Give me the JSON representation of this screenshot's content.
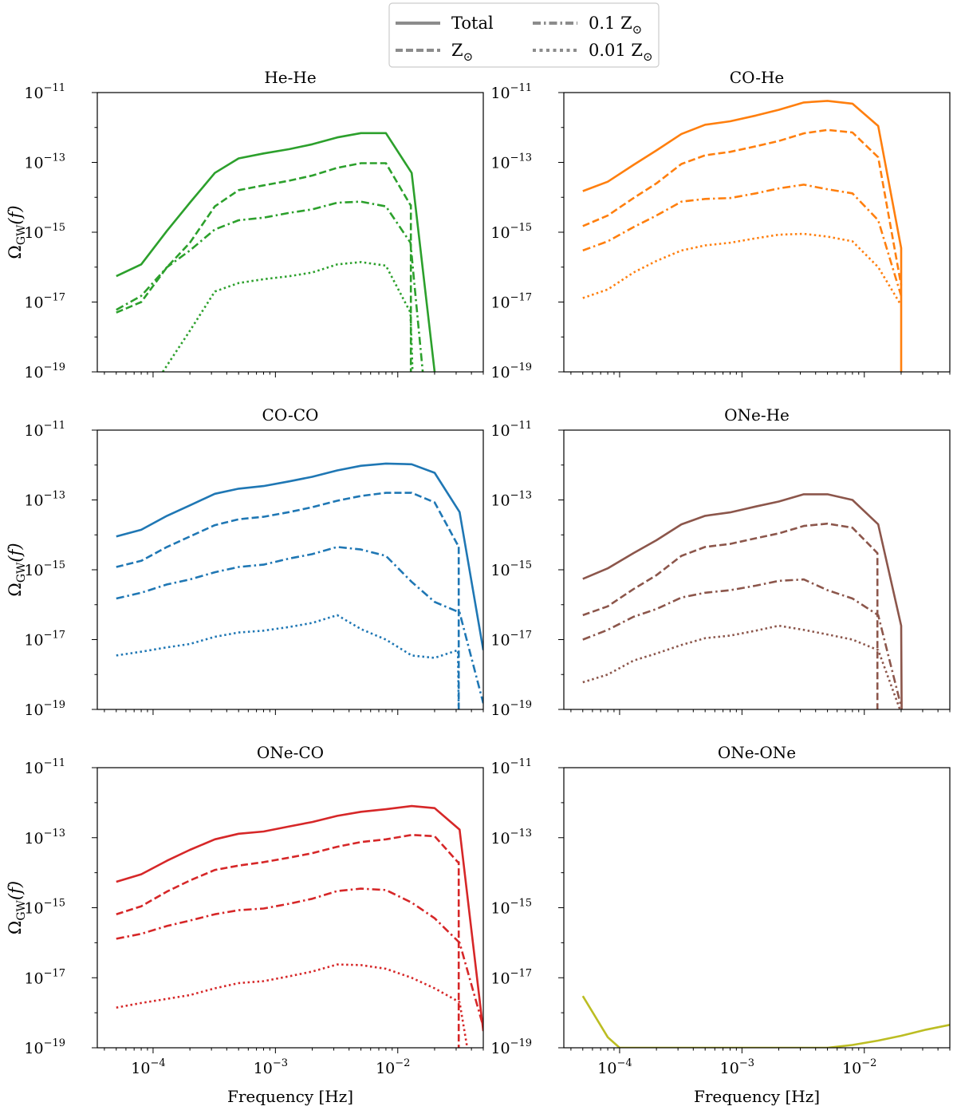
{
  "legend": {
    "position": "top-center",
    "entries": [
      {
        "label": "Total",
        "style": "solid"
      },
      {
        "label": "Z",
        "sub": "⊙",
        "style": "dashed"
      },
      {
        "label": "0.1 Z",
        "sub": "⊙",
        "style": "dashdot"
      },
      {
        "label": "0.01 Z",
        "sub": "⊙",
        "style": "dotted"
      }
    ],
    "color": "#8c8c8c"
  },
  "chart_data": [
    {
      "type": "line",
      "title": "He-He",
      "color": "#2ca02c",
      "xlabel": "",
      "ylabel": "Ω_GW(f)",
      "xscale": "log",
      "yscale": "log",
      "xlim": [
        3.5e-05,
        0.05
      ],
      "ylim": [
        1e-19,
        1e-11
      ],
      "yticks": [
        "10^-11",
        "10^-13",
        "10^-15",
        "10^-17",
        "10^-19"
      ],
      "series": [
        {
          "name": "Total",
          "style": "solid",
          "x": [
            5e-05,
            8e-05,
            0.00013,
            0.0002,
            0.00032,
            0.0005,
            0.0008,
            0.0013,
            0.002,
            0.0032,
            0.005,
            0.008,
            0.013,
            0.02
          ],
          "y": [
            5.5e-17,
            1.2e-16,
            1.1e-15,
            7e-15,
            5e-14,
            1.3e-13,
            1.8e-13,
            2.4e-13,
            3.3e-13,
            5.2e-13,
            6.9e-13,
            6.9e-13,
            5e-14,
            1e-19
          ]
        },
        {
          "name": "Z⊙",
          "style": "dashed",
          "x": [
            5e-05,
            8e-05,
            0.00013,
            0.0002,
            0.00032,
            0.0005,
            0.0008,
            0.0013,
            0.002,
            0.0032,
            0.005,
            0.008,
            0.0127,
            0.0128,
            0.0128
          ],
          "y": [
            5e-18,
            1e-17,
            1e-16,
            5e-16,
            5.5e-15,
            1.6e-14,
            2.2e-14,
            3e-14,
            4.2e-14,
            7e-14,
            9.5e-14,
            9.5e-14,
            6e-15,
            6e-15,
            1e-19
          ]
        },
        {
          "name": "0.1 Z⊙",
          "style": "dashdot",
          "x": [
            5e-05,
            8e-05,
            0.00013,
            0.0002,
            0.00032,
            0.0005,
            0.0008,
            0.0013,
            0.002,
            0.0032,
            0.005,
            0.008,
            0.0127,
            0.016
          ],
          "y": [
            6e-18,
            1.5e-17,
            1e-16,
            3e-16,
            1.2e-15,
            2.2e-15,
            2.6e-15,
            3.6e-15,
            4.5e-15,
            7e-15,
            7.5e-15,
            5.5e-15,
            5e-16,
            1e-19
          ]
        },
        {
          "name": "0.01 Z⊙",
          "style": "dotted",
          "x": [
            0.00012,
            0.0002,
            0.00032,
            0.0005,
            0.0008,
            0.0013,
            0.002,
            0.0032,
            0.005,
            0.008,
            0.0127,
            0.0132
          ],
          "y": [
            1e-19,
            1.5e-18,
            2e-17,
            3.5e-17,
            4.5e-17,
            5.5e-17,
            7e-17,
            1.2e-16,
            1.4e-16,
            1.1e-16,
            5e-18,
            1e-19
          ]
        }
      ]
    },
    {
      "type": "line",
      "title": "CO-He",
      "color": "#ff7f0e",
      "xlabel": "",
      "ylabel": "",
      "xscale": "log",
      "yscale": "log",
      "xlim": [
        3.5e-05,
        0.05
      ],
      "ylim": [
        1e-19,
        1e-11
      ],
      "yticks": [
        "10^-11",
        "10^-13",
        "10^-15",
        "10^-17",
        "10^-19"
      ],
      "series": [
        {
          "name": "Total",
          "style": "solid",
          "x": [
            5e-05,
            8e-05,
            0.00013,
            0.0002,
            0.00032,
            0.0005,
            0.0008,
            0.0013,
            0.002,
            0.0032,
            0.005,
            0.008,
            0.013,
            0.02,
            0.02
          ],
          "y": [
            1.5e-14,
            2.8e-14,
            8.5e-14,
            2.2e-13,
            6.5e-13,
            1.2e-12,
            1.5e-12,
            2.2e-12,
            3.2e-12,
            5.2e-12,
            5.8e-12,
            4.8e-12,
            1.1e-12,
            3.5e-16,
            1e-19
          ]
        },
        {
          "name": "Z⊙",
          "style": "dashed",
          "x": [
            5e-05,
            8e-05,
            0.00013,
            0.0002,
            0.00032,
            0.0005,
            0.0008,
            0.0013,
            0.002,
            0.0032,
            0.005,
            0.008,
            0.013,
            0.02
          ],
          "y": [
            1.5e-15,
            3e-15,
            9.5e-15,
            2.5e-14,
            9e-14,
            1.6e-13,
            2e-13,
            2.9e-13,
            4.1e-13,
            6.8e-13,
            8.5e-13,
            7.2e-13,
            1.4e-13,
            3e-17
          ]
        },
        {
          "name": "0.1 Z⊙",
          "style": "dashdot",
          "x": [
            5e-05,
            8e-05,
            0.00013,
            0.0002,
            0.00032,
            0.0005,
            0.0008,
            0.0013,
            0.002,
            0.0032,
            0.005,
            0.008,
            0.013,
            0.02
          ],
          "y": [
            3e-16,
            5.5e-16,
            1.4e-15,
            3e-15,
            7.5e-15,
            9e-15,
            9.5e-15,
            1.3e-14,
            1.8e-14,
            2.3e-14,
            1.7e-14,
            1.3e-14,
            2.2e-15,
            1.5e-17
          ]
        },
        {
          "name": "0.01 Z⊙",
          "style": "dotted",
          "x": [
            5e-05,
            8e-05,
            0.00013,
            0.0002,
            0.00032,
            0.0005,
            0.0008,
            0.0013,
            0.002,
            0.0032,
            0.005,
            0.008,
            0.013,
            0.02
          ],
          "y": [
            1.3e-17,
            2.3e-17,
            7e-17,
            1.5e-16,
            3e-16,
            4.2e-16,
            5e-16,
            6.7e-16,
            8.5e-16,
            9e-16,
            7.5e-16,
            5.5e-16,
            1e-16,
            8e-18
          ]
        }
      ]
    },
    {
      "type": "line",
      "title": "CO-CO",
      "color": "#1f77b4",
      "xlabel": "",
      "ylabel": "Ω_GW(f)",
      "xscale": "log",
      "yscale": "log",
      "xlim": [
        3.5e-05,
        0.05
      ],
      "ylim": [
        1e-19,
        1e-11
      ],
      "yticks": [
        "10^-11",
        "10^-13",
        "10^-15",
        "10^-17",
        "10^-19"
      ],
      "series": [
        {
          "name": "Total",
          "style": "solid",
          "x": [
            5e-05,
            8e-05,
            0.00013,
            0.0002,
            0.00032,
            0.0005,
            0.0008,
            0.0013,
            0.002,
            0.0032,
            0.005,
            0.008,
            0.013,
            0.02,
            0.032,
            0.05
          ],
          "y": [
            9e-15,
            1.4e-14,
            3.5e-14,
            7e-14,
            1.5e-13,
            2.1e-13,
            2.5e-13,
            3.4e-13,
            4.6e-13,
            7e-13,
            9.5e-13,
            1.1e-12,
            1.05e-12,
            6e-13,
            4.5e-14,
            5e-18
          ]
        },
        {
          "name": "Z⊙",
          "style": "dashed",
          "x": [
            5e-05,
            8e-05,
            0.00013,
            0.0002,
            0.00032,
            0.0005,
            0.0008,
            0.0013,
            0.002,
            0.0032,
            0.005,
            0.008,
            0.013,
            0.02,
            0.031,
            0.0315,
            0.0315
          ],
          "y": [
            1.2e-15,
            1.8e-15,
            4.5e-15,
            9e-15,
            1.9e-14,
            2.8e-14,
            3.3e-14,
            4.5e-14,
            6.2e-14,
            9.5e-14,
            1.3e-13,
            1.6e-13,
            1.6e-13,
            8.5e-14,
            5e-15,
            5e-15,
            1e-19
          ]
        },
        {
          "name": "0.1 Z⊙",
          "style": "dashdot",
          "x": [
            5e-05,
            8e-05,
            0.00013,
            0.0002,
            0.00032,
            0.0005,
            0.0008,
            0.0013,
            0.002,
            0.0032,
            0.005,
            0.008,
            0.013,
            0.02,
            0.032,
            0.05
          ],
          "y": [
            1.5e-16,
            2.2e-16,
            3.8e-16,
            5.3e-16,
            8.5e-16,
            1.2e-15,
            1.4e-15,
            2.1e-15,
            2.8e-15,
            4.5e-15,
            3.8e-15,
            2.5e-15,
            4.5e-16,
            1.2e-16,
            6e-17,
            1.5e-19
          ]
        },
        {
          "name": "0.01 Z⊙",
          "style": "dotted",
          "x": [
            5e-05,
            8e-05,
            0.00013,
            0.0002,
            0.00032,
            0.0005,
            0.0008,
            0.0013,
            0.002,
            0.0032,
            0.005,
            0.008,
            0.013,
            0.02,
            0.031,
            0.0315
          ],
          "y": [
            3.5e-18,
            4.5e-18,
            6e-18,
            7.5e-18,
            1.2e-17,
            1.6e-17,
            1.8e-17,
            2.3e-17,
            3e-17,
            5e-17,
            2e-17,
            1e-17,
            3.5e-18,
            3e-18,
            5e-18,
            1e-19
          ]
        }
      ]
    },
    {
      "type": "line",
      "title": "ONe-He",
      "color": "#8c564b",
      "xlabel": "",
      "ylabel": "",
      "xscale": "log",
      "yscale": "log",
      "xlim": [
        3.5e-05,
        0.05
      ],
      "ylim": [
        1e-19,
        1e-11
      ],
      "yticks": [
        "10^-11",
        "10^-13",
        "10^-15",
        "10^-17",
        "10^-19"
      ],
      "series": [
        {
          "name": "Total",
          "style": "solid",
          "x": [
            5e-05,
            8e-05,
            0.00013,
            0.0002,
            0.00032,
            0.0005,
            0.0008,
            0.0013,
            0.002,
            0.0032,
            0.005,
            0.008,
            0.013,
            0.02,
            0.0202
          ],
          "y": [
            5.5e-16,
            1.1e-15,
            3e-15,
            7e-15,
            2e-14,
            3.5e-14,
            4.4e-14,
            6.5e-14,
            9e-14,
            1.45e-13,
            1.45e-13,
            1e-13,
            2e-14,
            2.5e-17,
            1e-19
          ]
        },
        {
          "name": "Z⊙",
          "style": "dashed",
          "x": [
            5e-05,
            8e-05,
            0.00013,
            0.0002,
            0.00032,
            0.0005,
            0.0008,
            0.0013,
            0.002,
            0.0032,
            0.005,
            0.008,
            0.0128,
            0.0128
          ],
          "y": [
            5e-17,
            9e-17,
            2.8e-16,
            7e-16,
            2.5e-15,
            4.5e-15,
            5.5e-15,
            8e-15,
            1.1e-14,
            1.8e-14,
            2.1e-14,
            1.6e-14,
            3e-15,
            1e-19
          ]
        },
        {
          "name": "0.1 Z⊙",
          "style": "dashdot",
          "x": [
            5e-05,
            8e-05,
            0.00013,
            0.0002,
            0.00032,
            0.0005,
            0.0008,
            0.0013,
            0.002,
            0.0032,
            0.005,
            0.008,
            0.013,
            0.02
          ],
          "y": [
            1e-17,
            1.9e-17,
            4.5e-17,
            7.5e-17,
            1.6e-16,
            2.2e-16,
            2.6e-16,
            3.5e-16,
            4.8e-16,
            5.3e-16,
            2.6e-16,
            1.5e-16,
            5e-17,
            1.2e-19
          ]
        },
        {
          "name": "0.01 Z⊙",
          "style": "dotted",
          "x": [
            5e-05,
            8e-05,
            0.00013,
            0.0002,
            0.00032,
            0.0005,
            0.0008,
            0.0013,
            0.002,
            0.0032,
            0.005,
            0.008,
            0.013,
            0.02
          ],
          "y": [
            6e-19,
            1e-18,
            2.5e-18,
            4e-18,
            7e-18,
            1.1e-17,
            1.3e-17,
            1.8e-17,
            2.5e-17,
            1.9e-17,
            1.4e-17,
            1e-17,
            5e-18,
            8e-20
          ]
        }
      ]
    },
    {
      "type": "line",
      "title": "ONe-CO",
      "color": "#d62728",
      "xlabel": "Frequency [Hz]",
      "ylabel": "Ω_GW(f)",
      "xscale": "log",
      "yscale": "log",
      "xlim": [
        3.5e-05,
        0.05
      ],
      "ylim": [
        1e-19,
        1e-11
      ],
      "xticks": [
        "10^-4",
        "10^-3",
        "10^-2"
      ],
      "yticks": [
        "10^-11",
        "10^-13",
        "10^-15",
        "10^-17",
        "10^-19"
      ],
      "series": [
        {
          "name": "Total",
          "style": "solid",
          "x": [
            5e-05,
            8e-05,
            0.00013,
            0.0002,
            0.00032,
            0.0005,
            0.0008,
            0.0013,
            0.002,
            0.0032,
            0.005,
            0.008,
            0.013,
            0.02,
            0.032,
            0.05
          ],
          "y": [
            5.5e-15,
            9e-15,
            2.2e-14,
            4.5e-14,
            9e-14,
            1.3e-13,
            1.5e-13,
            2.1e-13,
            2.8e-13,
            4.2e-13,
            5.5e-13,
            6.5e-13,
            8e-13,
            7e-13,
            1.7e-13,
            3e-19
          ]
        },
        {
          "name": "Z⊙",
          "style": "dashed",
          "x": [
            5e-05,
            8e-05,
            0.00013,
            0.0002,
            0.00032,
            0.0005,
            0.0008,
            0.0013,
            0.002,
            0.0032,
            0.005,
            0.008,
            0.013,
            0.02,
            0.031,
            0.0315,
            0.0315
          ],
          "y": [
            6.5e-16,
            1.1e-15,
            2.9e-15,
            6e-15,
            1.2e-14,
            1.6e-14,
            2e-14,
            2.7e-14,
            3.6e-14,
            5.5e-14,
            7.5e-14,
            9e-14,
            1.2e-13,
            1.1e-13,
            2e-14,
            2e-14,
            1e-19
          ]
        },
        {
          "name": "0.1 Z⊙",
          "style": "dashdot",
          "x": [
            5e-05,
            8e-05,
            0.00013,
            0.0002,
            0.00032,
            0.0005,
            0.0008,
            0.0013,
            0.002,
            0.0032,
            0.005,
            0.008,
            0.013,
            0.02,
            0.032,
            0.05
          ],
          "y": [
            1.3e-16,
            1.8e-16,
            3e-16,
            4.3e-16,
            6.5e-16,
            8.5e-16,
            9.5e-16,
            1.3e-15,
            1.8e-15,
            3e-15,
            3.5e-15,
            3.2e-15,
            1.4e-15,
            5e-16,
            1e-16,
            4e-19
          ]
        },
        {
          "name": "0.01 Z⊙",
          "style": "dotted",
          "x": [
            5e-05,
            8e-05,
            0.00013,
            0.0002,
            0.00032,
            0.0005,
            0.0008,
            0.0013,
            0.002,
            0.0032,
            0.005,
            0.008,
            0.013,
            0.02,
            0.032,
            0.037
          ],
          "y": [
            1.4e-18,
            1.9e-18,
            2.5e-18,
            3.2e-18,
            5e-18,
            7e-18,
            8e-18,
            1.1e-17,
            1.5e-17,
            2.4e-17,
            2.3e-17,
            1.8e-17,
            1e-17,
            5e-18,
            2e-18,
            1e-19
          ]
        }
      ]
    },
    {
      "type": "line",
      "title": "ONe-ONe",
      "color": "#bcbd22",
      "xlabel": "Frequency [Hz]",
      "ylabel": "",
      "xscale": "log",
      "yscale": "log",
      "xlim": [
        3.5e-05,
        0.05
      ],
      "ylim": [
        1e-19,
        1e-11
      ],
      "xticks": [
        "10^-4",
        "10^-3",
        "10^-2"
      ],
      "yticks": [
        "10^-11",
        "10^-13",
        "10^-15",
        "10^-17",
        "10^-19"
      ],
      "series": [
        {
          "name": "Total",
          "style": "solid",
          "x": [
            5e-05,
            8e-05,
            0.0001,
            0.005,
            0.008,
            0.013,
            0.02,
            0.032,
            0.05
          ],
          "y": [
            3e-18,
            2e-19,
            1e-19,
            1e-19,
            1.2e-19,
            1.6e-19,
            2.2e-19,
            3.3e-19,
            4.5e-19
          ]
        }
      ]
    }
  ]
}
